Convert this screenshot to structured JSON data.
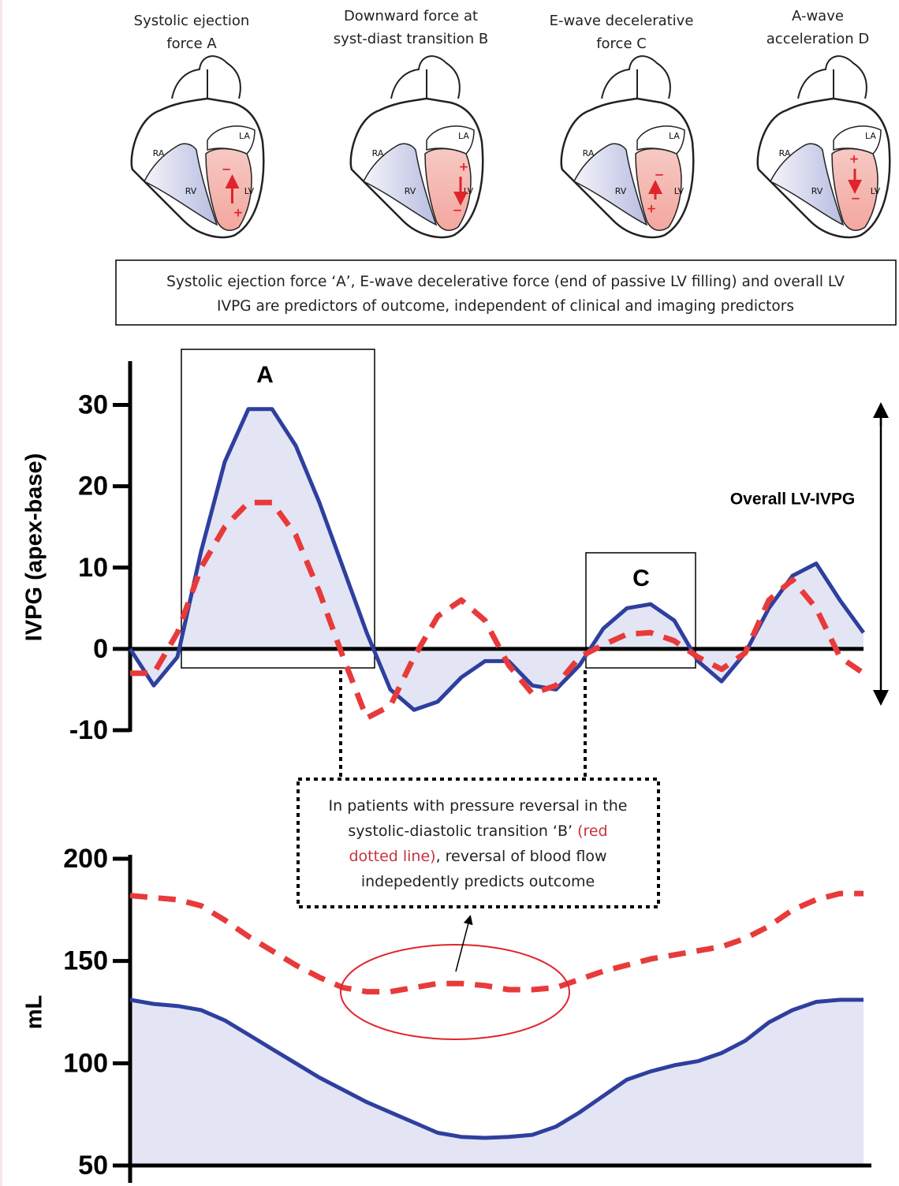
{
  "panels": [
    {
      "caption": [
        "Systolic ejection",
        "force A"
      ],
      "labels": [
        "RA",
        "RV",
        "LA",
        "LV"
      ],
      "signs": [
        "−",
        "+"
      ]
    },
    {
      "caption": [
        "Downward force at",
        "syst-diast transition B"
      ],
      "labels": [
        "RA",
        "RV",
        "LA",
        "LV"
      ],
      "signs": [
        "+",
        "−"
      ]
    },
    {
      "caption": [
        "E-wave decelerative",
        "force C"
      ],
      "labels": [
        "RA",
        "RV",
        "LA",
        "LV"
      ],
      "signs": [
        "−",
        "+"
      ]
    },
    {
      "caption": [
        "A-wave",
        "acceleration D"
      ],
      "labels": [
        "RA",
        "RV",
        "LA",
        "LV"
      ],
      "signs": [
        "+",
        "−"
      ]
    }
  ],
  "summary": [
    "Systolic ejection force ‘A’, E-wave decelerative force (end of passive LV filling) and overall LV",
    "IVPG are predictors of outcome, independent of clinical and imaging predictors"
  ],
  "note": [
    [
      {
        "text": "In patients with pressure reversal in the"
      }
    ],
    [
      {
        "text": "systolic-diastolic transition ‘B’ "
      },
      {
        "text": "(red",
        "color": "#c8323c"
      }
    ],
    [
      {
        "text": "dotted line)",
        "color": "#c8323c"
      },
      {
        "text": ", reversal of blood flow"
      }
    ],
    [
      {
        "text": "indepedently predicts outcome"
      }
    ]
  ],
  "chart_data": [
    {
      "type": "line",
      "y_label": "IVPG (apex-base)",
      "ylim": [
        -10,
        35
      ],
      "yticks": [
        -10,
        0,
        10,
        20,
        30
      ],
      "annotations": [
        "A",
        "C",
        "Overall LV-IVPG"
      ],
      "series": [
        {
          "color": "#2e3f9e",
          "fill": "#e3e5f4",
          "values": [
            0,
            -4.5,
            -1,
            12,
            23,
            29.5,
            29.5,
            25,
            18,
            10,
            2,
            -5,
            -7.5,
            -6.5,
            -3.5,
            -1.5,
            -1.5,
            -4.5,
            -5,
            -2,
            2.5,
            5,
            5.5,
            3.5,
            -1.5,
            -4,
            -0.5,
            5,
            9,
            10.5,
            6,
            2
          ]
        },
        {
          "color": "#e83a3a",
          "dashed": true,
          "values": [
            -3,
            -3,
            2,
            10,
            15,
            18,
            18,
            14,
            7,
            -1,
            -8.5,
            -7,
            -1,
            4,
            6,
            3.5,
            -2,
            -5.5,
            -4.5,
            -1,
            0.5,
            1.8,
            2,
            1,
            -1,
            -2.5,
            -0.5,
            6,
            8.5,
            5,
            -1,
            -3
          ]
        }
      ]
    },
    {
      "type": "line",
      "y_label": "mL",
      "ylim": [
        50,
        200
      ],
      "yticks": [
        50,
        100,
        150,
        200
      ],
      "series": [
        {
          "color": "#2e3f9e",
          "fill": "#e3e5f4",
          "values": [
            131,
            129,
            128,
            126,
            121,
            114,
            107,
            100,
            93,
            87,
            81,
            76,
            71,
            66,
            64,
            63.5,
            64,
            65,
            69,
            76,
            84,
            92,
            96,
            99,
            101,
            105,
            111,
            120,
            126,
            130,
            131,
            131
          ]
        },
        {
          "color": "#e83a3a",
          "dashed": true,
          "values": [
            182,
            181,
            180,
            177,
            170,
            162,
            155,
            148,
            142,
            137,
            135,
            135,
            137,
            139,
            139,
            138,
            136,
            136,
            137,
            141,
            145,
            148,
            151,
            153,
            155,
            157,
            161,
            167,
            175,
            180,
            183,
            183
          ]
        }
      ]
    }
  ]
}
